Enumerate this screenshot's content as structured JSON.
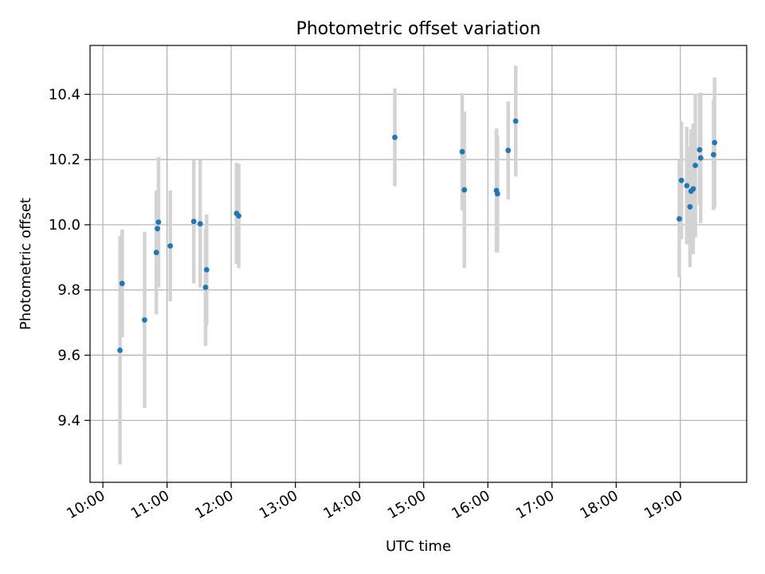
{
  "chart_data": {
    "type": "scatter",
    "title": "Photometric offset variation",
    "xlabel": "UTC time",
    "ylabel": "Photometric offset",
    "xlim": [
      "09:48",
      "20:02"
    ],
    "ylim": [
      9.21,
      10.55
    ],
    "x_ticks": [
      "10:00",
      "11:00",
      "12:00",
      "13:00",
      "14:00",
      "15:00",
      "16:00",
      "17:00",
      "18:00",
      "19:00"
    ],
    "y_ticks": [
      9.4,
      9.6,
      9.8,
      10.0,
      10.2,
      10.4
    ],
    "grid": true,
    "colors": {
      "point": "#1f77b4",
      "errorbar": "#d3d3d3",
      "grid": "#b0b0b0"
    },
    "points": [
      {
        "x": "10:16",
        "y": 9.615,
        "yerr": 0.35
      },
      {
        "x": "10:18",
        "y": 9.82,
        "yerr": 0.165
      },
      {
        "x": "10:39",
        "y": 9.708,
        "yerr": 0.27
      },
      {
        "x": "10:50",
        "y": 9.915,
        "yerr": 0.19
      },
      {
        "x": "10:51",
        "y": 9.988,
        "yerr": 0.115
      },
      {
        "x": "10:52",
        "y": 10.008,
        "yerr": 0.2
      },
      {
        "x": "11:03",
        "y": 9.935,
        "yerr": 0.17
      },
      {
        "x": "11:25",
        "y": 10.01,
        "yerr": 0.19
      },
      {
        "x": "11:31",
        "y": 10.003,
        "yerr": 0.195
      },
      {
        "x": "11:36",
        "y": 9.808,
        "yerr": 0.18
      },
      {
        "x": "11:37",
        "y": 9.862,
        "yerr": 0.17
      },
      {
        "x": "12:05",
        "y": 10.035,
        "yerr": 0.155
      },
      {
        "x": "12:07",
        "y": 10.027,
        "yerr": 0.16
      },
      {
        "x": "14:33",
        "y": 10.268,
        "yerr": 0.15
      },
      {
        "x": "15:36",
        "y": 10.224,
        "yerr": 0.18
      },
      {
        "x": "15:38",
        "y": 10.107,
        "yerr": 0.24
      },
      {
        "x": "16:08",
        "y": 10.105,
        "yerr": 0.19
      },
      {
        "x": "16:09",
        "y": 10.095,
        "yerr": 0.18
      },
      {
        "x": "16:19",
        "y": 10.228,
        "yerr": 0.15
      },
      {
        "x": "16:26",
        "y": 10.318,
        "yerr": 0.17
      },
      {
        "x": "18:59",
        "y": 10.018,
        "yerr": 0.18
      },
      {
        "x": "19:01",
        "y": 10.136,
        "yerr": 0.18
      },
      {
        "x": "19:06",
        "y": 10.12,
        "yerr": 0.18
      },
      {
        "x": "19:09",
        "y": 10.055,
        "yerr": 0.185
      },
      {
        "x": "19:10",
        "y": 10.103,
        "yerr": 0.19
      },
      {
        "x": "19:12",
        "y": 10.11,
        "yerr": 0.2
      },
      {
        "x": "19:14",
        "y": 10.182,
        "yerr": 0.22
      },
      {
        "x": "19:18",
        "y": 10.23,
        "yerr": 0.17
      },
      {
        "x": "19:19",
        "y": 10.205,
        "yerr": 0.2
      },
      {
        "x": "19:31",
        "y": 10.215,
        "yerr": 0.17
      },
      {
        "x": "19:32",
        "y": 10.252,
        "yerr": 0.2
      }
    ]
  }
}
